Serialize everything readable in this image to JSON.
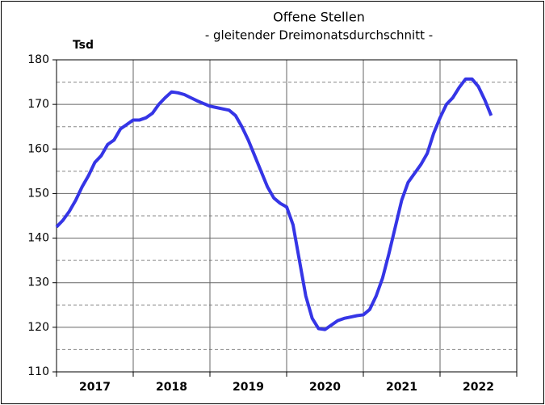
{
  "chart_data": {
    "type": "line",
    "title": "Offene Stellen",
    "subtitle": "- gleitender Dreimonatsdurchschnitt -",
    "y_label": "Tsd",
    "categories": [
      null,
      null,
      null,
      null,
      null,
      null,
      "2017",
      null,
      null,
      null,
      null,
      null,
      null,
      null,
      null,
      null,
      null,
      null,
      "2018",
      null,
      null,
      null,
      null,
      null,
      null,
      null,
      null,
      null,
      null,
      null,
      "2019",
      null,
      null,
      null,
      null,
      null,
      null,
      null,
      null,
      null,
      null,
      null,
      "2020",
      null,
      null,
      null,
      null,
      null,
      null,
      null,
      null,
      null,
      null,
      null,
      "2021",
      null,
      null,
      null,
      null,
      null,
      null,
      null,
      null,
      null,
      null,
      null,
      "2022",
      null,
      null
    ],
    "series": [
      {
        "name": "Offene Stellen",
        "color": "#3535e6",
        "values": [
          142.5,
          144,
          146,
          148.5,
          151.5,
          154,
          157,
          158.5,
          161,
          162,
          164.5,
          165.5,
          166.5,
          166.5,
          167,
          168,
          170,
          171.5,
          172.8,
          172.6,
          172.2,
          171.5,
          170.8,
          170.2,
          169.6,
          169.3,
          169,
          168.7,
          167.5,
          165,
          162,
          158.5,
          155,
          151.5,
          149,
          147.8,
          147,
          143,
          135,
          127,
          122,
          119.7,
          119.5,
          120.5,
          121.5,
          122,
          122.3,
          122.6,
          122.8,
          124,
          127,
          131,
          136.5,
          142.5,
          148.5,
          152.5,
          154.5,
          156.5,
          159,
          163.5,
          167,
          170,
          171.5,
          173.8,
          175.7,
          175.7,
          174,
          171,
          167.5
        ]
      }
    ],
    "ylim": [
      110,
      180
    ],
    "yticks": [
      110,
      120,
      130,
      140,
      150,
      160,
      170,
      180
    ],
    "yminor_ticks": [
      115,
      125,
      135,
      145,
      155,
      165,
      175
    ],
    "grid": true
  }
}
